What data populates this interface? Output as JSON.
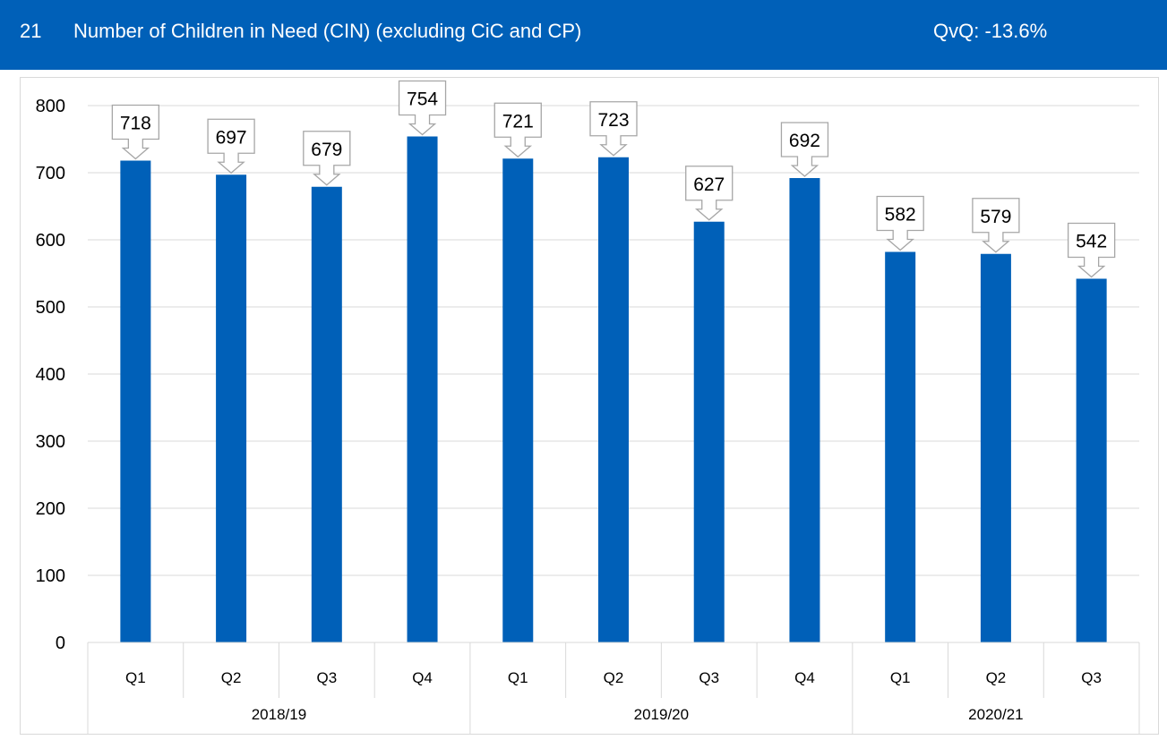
{
  "header": {
    "number": "21",
    "title": "Number of Children in Need (CIN) (excluding CiC and CP)",
    "qvq": "QvQ: -13.6%"
  },
  "colors": {
    "header_bg": "#0060B8",
    "bar": "#0060B8",
    "grid": "#d9d9d9",
    "callout_border": "#a6a6a6"
  },
  "chart_data": {
    "type": "bar",
    "title": "",
    "xlabel": "",
    "ylabel": "",
    "ylim": [
      0,
      800
    ],
    "yticks": [
      0,
      100,
      200,
      300,
      400,
      500,
      600,
      700,
      800
    ],
    "grid": "horizontal",
    "legend": "none",
    "categories": [
      "Q1",
      "Q2",
      "Q3",
      "Q4",
      "Q1",
      "Q2",
      "Q3",
      "Q4",
      "Q1",
      "Q2",
      "Q3"
    ],
    "groups": [
      {
        "label": "2018/19",
        "count": 4
      },
      {
        "label": "2019/20",
        "count": 4
      },
      {
        "label": "2020/21",
        "count": 3
      }
    ],
    "values": [
      718,
      697,
      679,
      754,
      721,
      723,
      627,
      692,
      582,
      579,
      542
    ]
  }
}
